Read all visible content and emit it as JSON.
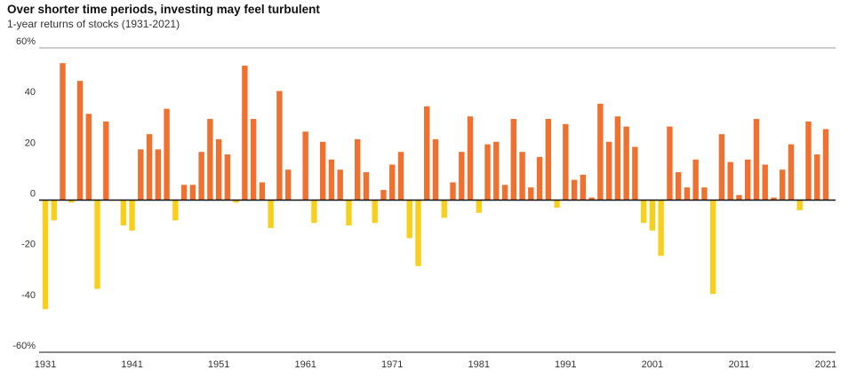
{
  "title": "Over shorter time periods, investing may feel turbulent",
  "subtitle": "1-year returns of stocks (1931-2021)",
  "colors": {
    "positive": "#f07030",
    "negative": "#f8d01c",
    "axis": "#111111",
    "gridline": "#999999"
  },
  "chart_data": {
    "type": "bar",
    "title": "Over shorter time periods, investing may feel turbulent",
    "subtitle": "1-year returns of stocks (1931-2021)",
    "xlabel": "",
    "ylabel": "",
    "ylim": [
      -60,
      60
    ],
    "y_ticks": [
      "60%",
      "40",
      "20",
      "0",
      "-20",
      "-40",
      "-60%"
    ],
    "y_tick_values": [
      60,
      40,
      20,
      0,
      -20,
      -40,
      -60
    ],
    "x_ticks": [
      "1931",
      "1941",
      "1951",
      "1961",
      "1971",
      "1981",
      "1991",
      "2001",
      "2011",
      "2021"
    ],
    "x_tick_values": [
      1931,
      1941,
      1951,
      1961,
      1971,
      1981,
      1991,
      2001,
      2011,
      2021
    ],
    "categories": [
      1931,
      1932,
      1933,
      1934,
      1935,
      1936,
      1937,
      1938,
      1939,
      1940,
      1941,
      1942,
      1943,
      1944,
      1945,
      1946,
      1947,
      1948,
      1949,
      1950,
      1951,
      1952,
      1953,
      1954,
      1955,
      1956,
      1957,
      1958,
      1959,
      1960,
      1961,
      1962,
      1963,
      1964,
      1965,
      1966,
      1967,
      1968,
      1969,
      1970,
      1971,
      1972,
      1973,
      1974,
      1975,
      1976,
      1977,
      1978,
      1979,
      1980,
      1981,
      1982,
      1983,
      1984,
      1985,
      1986,
      1987,
      1988,
      1989,
      1990,
      1991,
      1992,
      1993,
      1994,
      1995,
      1996,
      1997,
      1998,
      1999,
      2000,
      2001,
      2002,
      2003,
      2004,
      2005,
      2006,
      2007,
      2008,
      2009,
      2010,
      2011,
      2012,
      2013,
      2014,
      2015,
      2016,
      2017,
      2018,
      2019,
      2020,
      2021
    ],
    "values": [
      -43,
      -8,
      54,
      -1,
      47,
      34,
      -35,
      31,
      0,
      -10,
      -12,
      20,
      26,
      20,
      36,
      -8,
      6,
      6,
      19,
      32,
      24,
      18,
      -1,
      53,
      32,
      7,
      -11,
      43,
      12,
      0,
      27,
      -9,
      23,
      16,
      12,
      -10,
      24,
      11,
      -9,
      4,
      14,
      19,
      -15,
      -26,
      37,
      24,
      -7,
      7,
      19,
      33,
      -5,
      22,
      23,
      6,
      32,
      19,
      5,
      17,
      32,
      -3,
      30,
      8,
      10,
      1,
      38,
      23,
      33,
      29,
      21,
      -9,
      -12,
      -22,
      29,
      11,
      5,
      16,
      5,
      -37,
      26,
      15,
      2,
      16,
      32,
      14,
      1,
      12,
      22,
      -4,
      31,
      18,
      28
    ]
  }
}
